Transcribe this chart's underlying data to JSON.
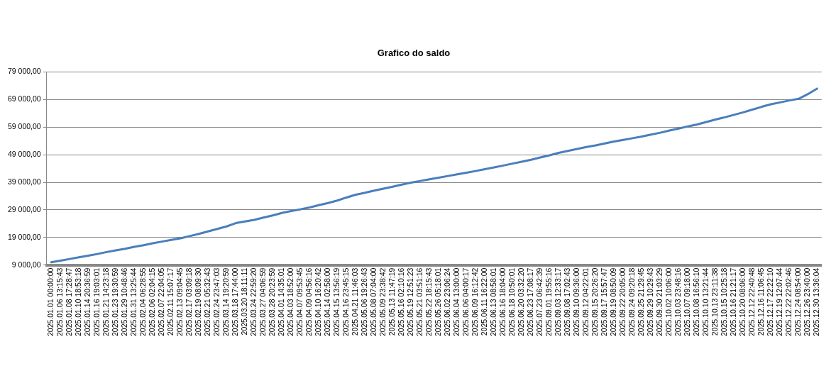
{
  "chart_data": {
    "type": "line",
    "title": "Grafico do saldo",
    "categories": [
      "2025.01.01 00:00:00",
      "2025.01.06 13:15:43",
      "2025.01.08 17:28:47",
      "2025.01.10 18:53:18",
      "2025.01.14 20:36:59",
      "2025.01.16 19:03:01",
      "2025.01.21 14:23:18",
      "2025.01.23 19:30:59",
      "2025.01.29 10:48:46",
      "2025.01.31 13:25:44",
      "2025.02.04 06:28:55",
      "2025.02.06 02:04:15",
      "2025.02.07 22:04:05",
      "2025.02.11 15:07:17",
      "2025.02.13 09:04:45",
      "2025.02.17 03:09:18",
      "2025.02.19 08:09:30",
      "2025.02.21 05:32:43",
      "2025.02.24 23:47:03",
      "2025.03.14 19:20:59",
      "2025.03.18 17:44:00",
      "2025.03.20 18:11:11",
      "2025.03.24 22:59:20",
      "2025.03.27 04:06:59",
      "2025.03.28 20:23:59",
      "2025.04.01 14:35:01",
      "2025.04.03 18:52:00",
      "2025.04.07 09:53:45",
      "2025.04.09 04:56:16",
      "2025.04.10 16:20:42",
      "2025.04.14 02:58:00",
      "2025.04.15 13:56:19",
      "2025.04.16 23:45:15",
      "2025.04.21 11:46:03",
      "2025.05.06 19:26:43",
      "2025.05.08 07:04:00",
      "2025.05.09 23:38:42",
      "2025.05.13 11:47:19",
      "2025.05.16 02:10:16",
      "2025.05.19 12:51:23",
      "2025.05.21 03:51:16",
      "2025.05.22 18:15:43",
      "2025.05.26 05:18:01",
      "2025.06.02 23:06:24",
      "2025.06.04 13:00:00",
      "2025.06.06 04:00:17",
      "2025.06.09 16:12:42",
      "2025.06.11 16:22:00",
      "2025.06.13 08:58:01",
      "2025.06.16 18:04:00",
      "2025.06.18 10:50:01",
      "2025.06.20 03:32:20",
      "2025.06.23 17:08:17",
      "2025.07.23 06:42:39",
      "2025.09.01 19:55:16",
      "2025.09.03 12:33:17",
      "2025.09.08 17:02:43",
      "2025.09.10 09:36:00",
      "2025.09.12 04:22:01",
      "2025.09.15 20:26:20",
      "2025.09.17 15:57:47",
      "2025.09.19 08:50:09",
      "2025.09.22 20:05:00",
      "2025.09.24 09:20:18",
      "2025.09.25 21:29:45",
      "2025.09.29 10:29:43",
      "2025.09.30 21:03:29",
      "2025.10.02 10:06:00",
      "2025.10.03 23:48:16",
      "2025.10.07 09:18:00",
      "2025.10.08 16:56:10",
      "2025.10.10 13:21:44",
      "2025.10.13 23:11:38",
      "2025.10.15 10:25:18",
      "2025.10.16 21:21:17",
      "2025.10.20 08:06:00",
      "2025.12.12 22:40:48",
      "2025.12.16 11:06:45",
      "2025.12.17 22:22:10",
      "2025.12.19 12:07:44",
      "2025.12.22 22:02:46",
      "2025.12.24 08:54:00",
      "2025.12.26 23:40:00",
      "2025.12.30 13:36:04"
    ],
    "series": [
      {
        "color": "#4a7ebb",
        "values": [
          10000,
          10600,
          11200,
          11800,
          12400,
          13000,
          13700,
          14300,
          14900,
          15600,
          16200,
          16900,
          17500,
          18100,
          18700,
          19500,
          20300,
          21200,
          22100,
          23000,
          24200,
          24800,
          25400,
          26200,
          27000,
          27900,
          28600,
          29200,
          29900,
          30700,
          31500,
          32400,
          33500,
          34500,
          35200,
          36000,
          36700,
          37400,
          38200,
          38900,
          39500,
          40100,
          40700,
          41300,
          41900,
          42500,
          43100,
          43800,
          44400,
          45100,
          45800,
          46500,
          47200,
          48000,
          48800,
          49700,
          50400,
          51100,
          51800,
          52400,
          53100,
          53800,
          54400,
          55000,
          55600,
          56300,
          57000,
          57800,
          58500,
          59300,
          60000,
          60900,
          61800,
          62600,
          63500,
          64400,
          65400,
          66400,
          67300,
          68000,
          68700,
          69300,
          71000,
          73000
        ]
      }
    ],
    "ylim": [
      9000,
      79000
    ],
    "yticks": [
      {
        "value": 9000,
        "label": "9 000,00"
      },
      {
        "value": 19000,
        "label": "19 000,00"
      },
      {
        "value": 29000,
        "label": "29 000,00"
      },
      {
        "value": 39000,
        "label": "39 000,00"
      },
      {
        "value": 49000,
        "label": "49 000,00"
      },
      {
        "value": 59000,
        "label": "59 000,00"
      },
      {
        "value": 69000,
        "label": "69 000,00"
      },
      {
        "value": 79000,
        "label": "79 000,00"
      }
    ],
    "grid": "y",
    "legend": false,
    "marker": "none",
    "line_style": "solid"
  }
}
